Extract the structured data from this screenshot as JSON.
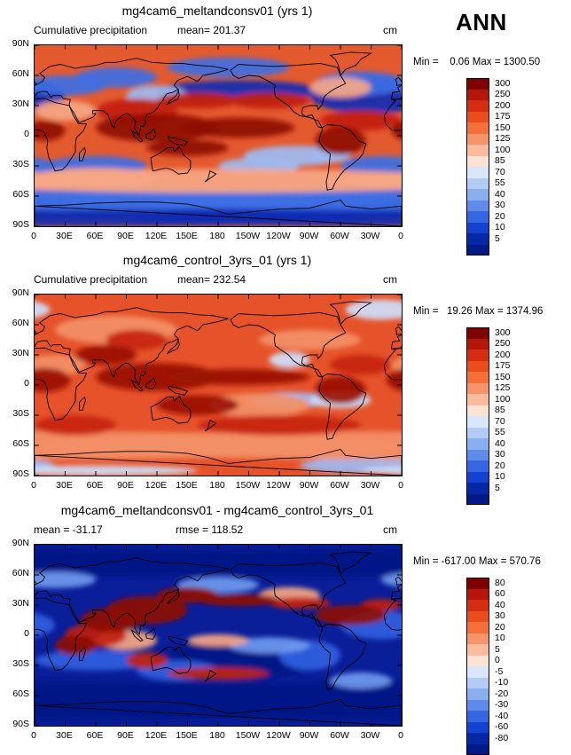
{
  "season": "ANN",
  "x_ticks": [
    "0",
    "30E",
    "60E",
    "90E",
    "120E",
    "150E",
    "180",
    "150W",
    "120W",
    "90W",
    "60W",
    "30W",
    "0"
  ],
  "y_ticks": [
    "90N",
    "60N",
    "30N",
    "0",
    "30S",
    "60S",
    "90S"
  ],
  "panels": [
    {
      "title": "mg4cam6_meltandconsv01 (yrs 1)",
      "left_label": "Cumulative precipitation",
      "center_label": "mean= 201.37",
      "right_label": "cm",
      "minmax": "Min =    0.06 Max = 1300.50",
      "colorbar": {
        "labels": [
          "300",
          "250",
          "200",
          "175",
          "150",
          "125",
          "100",
          "85",
          "70",
          "55",
          "40",
          "30",
          "20",
          "10",
          "5"
        ],
        "colors": [
          "#7f0000",
          "#b5160a",
          "#d42d11",
          "#ea4d1b",
          "#f46f3a",
          "#f8946a",
          "#fbbb9c",
          "#fde3d4",
          "#d9e6fb",
          "#b2ccf6",
          "#8aaff0",
          "#5f8cea",
          "#3667e3",
          "#1442d0",
          "#0628a6",
          "#001a86"
        ]
      },
      "map_palette": {
        "base": "#e45a2f",
        "strong": "#8e0c05",
        "mid": "#c1210d",
        "light": "#f6a784",
        "pale": "#fbd7c6",
        "cool": "#9dbbf2",
        "blue": "#3d6fe4",
        "deep": "#0a2cb4"
      }
    },
    {
      "title": "mg4cam6_control_3yrs_01 (yrs 1)",
      "left_label": "Cumulative precipitation",
      "center_label": "mean= 232.54",
      "right_label": "cm",
      "minmax": "Min =   19.26 Max = 1374.96",
      "colorbar": {
        "labels": [
          "300",
          "250",
          "200",
          "175",
          "150",
          "125",
          "100",
          "85",
          "70",
          "55",
          "40",
          "30",
          "20",
          "10",
          "5"
        ],
        "colors": [
          "#7f0000",
          "#b5160a",
          "#d42d11",
          "#ea4d1b",
          "#f46f3a",
          "#f8946a",
          "#fbbb9c",
          "#fde3d4",
          "#d9e6fb",
          "#b2ccf6",
          "#8aaff0",
          "#5f8cea",
          "#3667e3",
          "#1442d0",
          "#0628a6",
          "#001a86"
        ]
      },
      "map_palette": {
        "base": "#e6532a",
        "strong": "#9a1207",
        "mid": "#c72410",
        "light": "#f39067",
        "pale": "#fde6dc",
        "cool": "#cfe0fb",
        "blue": "#9dbbf2",
        "deep": "#5f8cea"
      }
    },
    {
      "title": "mg4cam6_meltandconsv01 - mg4cam6_control_3yrs_01",
      "left_label": "mean = -31.17",
      "center_label": "rmse = 118.52",
      "right_label": "cm",
      "minmax": "Min = -617.00 Max = 570.76",
      "colorbar": {
        "labels": [
          "80",
          "60",
          "40",
          "30",
          "20",
          "10",
          "5",
          "0",
          "-5",
          "-10",
          "-20",
          "-30",
          "-40",
          "-60",
          "-80"
        ],
        "colors": [
          "#7f0000",
          "#b5160a",
          "#d42d11",
          "#ea4d1b",
          "#f46f3a",
          "#f8946a",
          "#fbbb9c",
          "#fde3d4",
          "#d9e6fb",
          "#b2ccf6",
          "#8aaff0",
          "#5f8cea",
          "#3667e3",
          "#1442d0",
          "#0628a6",
          "#001a86"
        ]
      },
      "map_palette": {
        "base": "#0a1e9a",
        "strong": "#8e0c05",
        "mid": "#c1210d",
        "light": "#f6a784",
        "pale": "#fde3d4",
        "cool": "#6f9aee",
        "blue": "#2f5fe0",
        "deep": "#001a86"
      }
    }
  ]
}
